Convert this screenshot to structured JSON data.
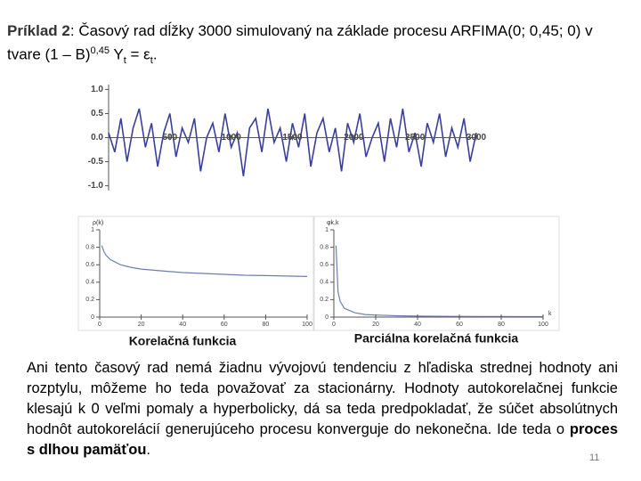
{
  "slide": {
    "title": {
      "label": "Príklad 2",
      "text1": ": Časový rad dĺžky 3000 simulovaný na základe procesu ARFIMA(0; 0,45; 0) v tvare (1 – B)",
      "exponent": "0,45",
      "text2": " Y",
      "sub1": "t",
      "text3": " = ε",
      "sub2": "t",
      "text4": "."
    },
    "body": {
      "text": "Ani tento časový rad nemá žiadnu vývojovú tendenciu z hľadiska strednej hodnoty ani rozptylu, môžeme ho teda považovať za stacionárny. Hodnoty autokorelačnej funkcie klesajú k 0 veľmi pomaly a hyperbolicky, dá sa teda predpokladať, že súčet absolútnych hodnôt autokorelácií generujúceho procesu konverguje do nekonečna. Ide teda o ",
      "emphasis": "proces s dlhou pamäťou",
      "end": "."
    },
    "page_number": 11
  },
  "chart_data": [
    {
      "type": "line",
      "color": "#3b3f9c",
      "x": [
        0,
        50,
        100,
        150,
        200,
        250,
        300,
        350,
        400,
        450,
        500,
        550,
        600,
        650,
        700,
        750,
        800,
        850,
        900,
        950,
        1000,
        1050,
        1100,
        1150,
        1200,
        1250,
        1300,
        1350,
        1400,
        1450,
        1500,
        1550,
        1600,
        1650,
        1700,
        1750,
        1800,
        1850,
        1900,
        1950,
        2000,
        2050,
        2100,
        2150,
        2200,
        2250,
        2300,
        2350,
        2400,
        2450,
        2500,
        2550,
        2600,
        2650,
        2700,
        2750,
        2800,
        2850,
        2900,
        2950,
        3000
      ],
      "values": [
        0.1,
        -0.3,
        0.4,
        -0.5,
        0.2,
        0.6,
        -0.2,
        0.3,
        -0.6,
        0.1,
        0.5,
        -0.4,
        0.2,
        -0.1,
        0.4,
        -0.7,
        0.0,
        0.3,
        -0.3,
        0.5,
        -0.2,
        0.1,
        -0.8,
        0.2,
        0.4,
        -0.3,
        0.6,
        -0.1,
        0.2,
        -0.5,
        0.3,
        -0.2,
        0.5,
        -0.6,
        0.1,
        0.4,
        -0.3,
        0.2,
        -0.7,
        0.3,
        -0.1,
        0.5,
        -0.4,
        0.0,
        0.3,
        -0.5,
        0.4,
        -0.2,
        0.6,
        -0.3,
        0.1,
        -0.6,
        0.3,
        -0.1,
        0.5,
        -0.4,
        0.2,
        -0.2,
        0.4,
        -0.5,
        0.1
      ],
      "xlim": [
        0,
        3000
      ],
      "xticks": [
        500,
        1000,
        1500,
        2000,
        2500,
        3000
      ],
      "ylim": [
        -1.1,
        1.1
      ],
      "yticks": [
        {
          "value": 1,
          "label": "1.0"
        },
        0.5,
        {
          "value": 0,
          "label": "0.0"
        },
        -0.5,
        {
          "value": -1,
          "label": "-1.0"
        }
      ]
    },
    {
      "type": "line",
      "title": "Korelačná funkcia",
      "ylabel": "ρ(k)",
      "color": "#6b7fb3",
      "x": [
        1,
        2,
        3,
        5,
        10,
        15,
        20,
        30,
        40,
        50,
        60,
        70,
        80,
        90,
        100
      ],
      "values": [
        0.82,
        0.75,
        0.71,
        0.66,
        0.6,
        0.57,
        0.55,
        0.53,
        0.51,
        0.5,
        0.49,
        0.48,
        0.475,
        0.47,
        0.465
      ],
      "xlim": [
        0,
        100
      ],
      "xticks": [
        0,
        20,
        40,
        60,
        80,
        100
      ],
      "ylim": [
        0,
        1
      ],
      "yticks": [
        0,
        0.2,
        0.4,
        0.6,
        0.8,
        1
      ]
    },
    {
      "type": "line",
      "title": "Parciálna korelačná funkcia",
      "ylabel": "φk,k",
      "xlabel": "k",
      "color": "#6b7fb3",
      "x": [
        1,
        2,
        3,
        5,
        10,
        15,
        20,
        30,
        40,
        50,
        60,
        70,
        80,
        90,
        100
      ],
      "values": [
        0.82,
        0.29,
        0.18,
        0.1,
        0.05,
        0.03,
        0.023,
        0.015,
        0.011,
        0.009,
        0.008,
        0.007,
        0.006,
        0.005,
        0.005
      ],
      "xlim": [
        0,
        100
      ],
      "xticks": [
        0,
        20,
        40,
        60,
        80,
        100
      ],
      "ylim": [
        0,
        1
      ],
      "yticks": [
        0,
        0.2,
        0.4,
        0.6,
        0.8,
        1
      ]
    }
  ]
}
